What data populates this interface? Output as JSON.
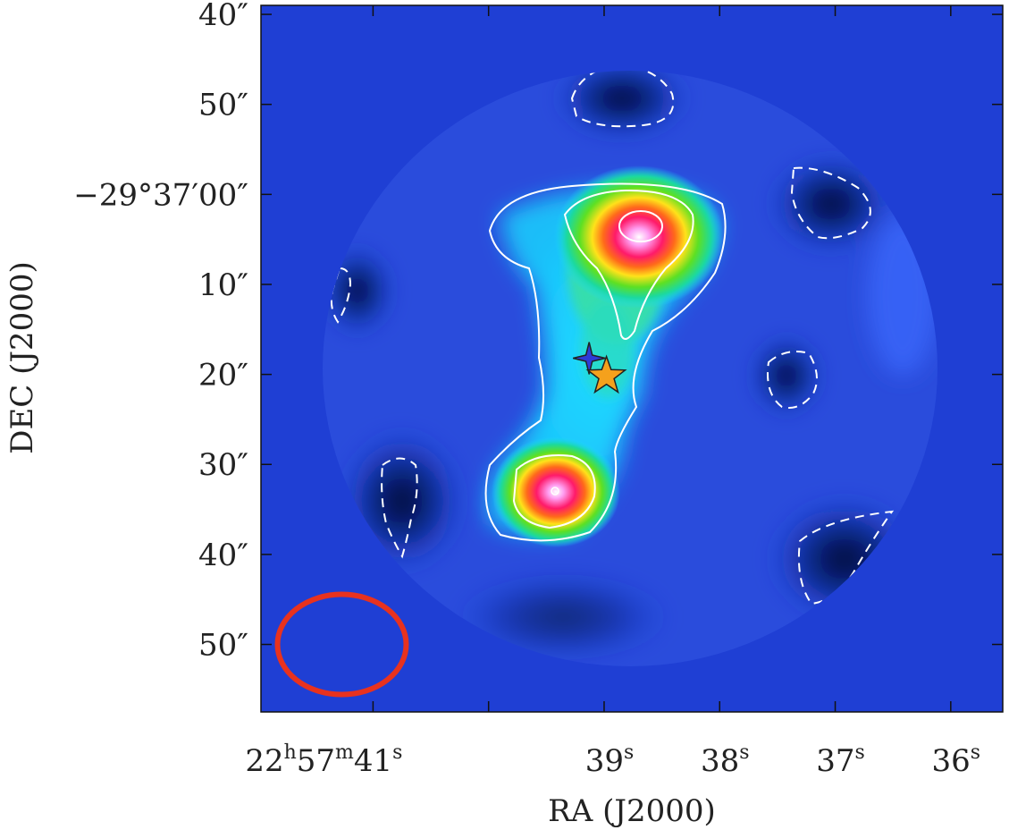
{
  "chart_data": {
    "type": "heatmap",
    "xlabel": "RA (J2000)",
    "ylabel": "DEC (J2000)",
    "x_ticks": [
      {
        "hms": "22h57m41s",
        "main": "22",
        "h": "h",
        "m_val": "57",
        "m": "m",
        "s_val": "41",
        "s": "s",
        "sec": 41
      },
      {
        "s_val": "39",
        "s": "s",
        "sec": 39
      },
      {
        "s_val": "38",
        "s": "s",
        "sec": 38
      },
      {
        "s_val": "37",
        "s": "s",
        "sec": 37
      },
      {
        "s_val": "36",
        "s": "s",
        "sec": 36
      }
    ],
    "x_minor_ticks_sec": [
      40
    ],
    "y_ticks": [
      {
        "label": "40″",
        "offset_arcsec": -20
      },
      {
        "label": "50″",
        "offset_arcsec": -10
      },
      {
        "label": "−29°37′00″",
        "offset_arcsec": 0
      },
      {
        "label": "10″",
        "offset_arcsec": 10
      },
      {
        "label": "20″",
        "offset_arcsec": 20
      },
      {
        "label": "30″",
        "offset_arcsec": 30
      },
      {
        "label": "40″",
        "offset_arcsec": 40
      },
      {
        "label": "50″",
        "offset_arcsec": 50
      }
    ],
    "xlim_sec": [
      41.97,
      35.55
    ],
    "ylim_arcsec": [
      57.5,
      -21
    ],
    "peaks": [
      {
        "ra_sec": 38.75,
        "dec_arcsec": 3.5,
        "relative_intensity": 1.0
      },
      {
        "ra_sec": 39.45,
        "dec_arcsec": 33.0,
        "relative_intensity": 0.92
      }
    ],
    "markers": [
      {
        "name": "blue-star",
        "ra_sec": 39.13,
        "dec_arcsec": 18.2,
        "color": "#2f3bd6"
      },
      {
        "name": "orange-star",
        "ra_sec": 38.98,
        "dec_arcsec": 20.2,
        "color": "#f5a11c"
      }
    ],
    "beam": {
      "ra_sec": 41.27,
      "dec_arcsec": 50.0,
      "color": "#e8321e"
    },
    "colors": {
      "background": "#1f3fd4",
      "low": "#0a1b80",
      "contour": "#ffffff"
    }
  }
}
